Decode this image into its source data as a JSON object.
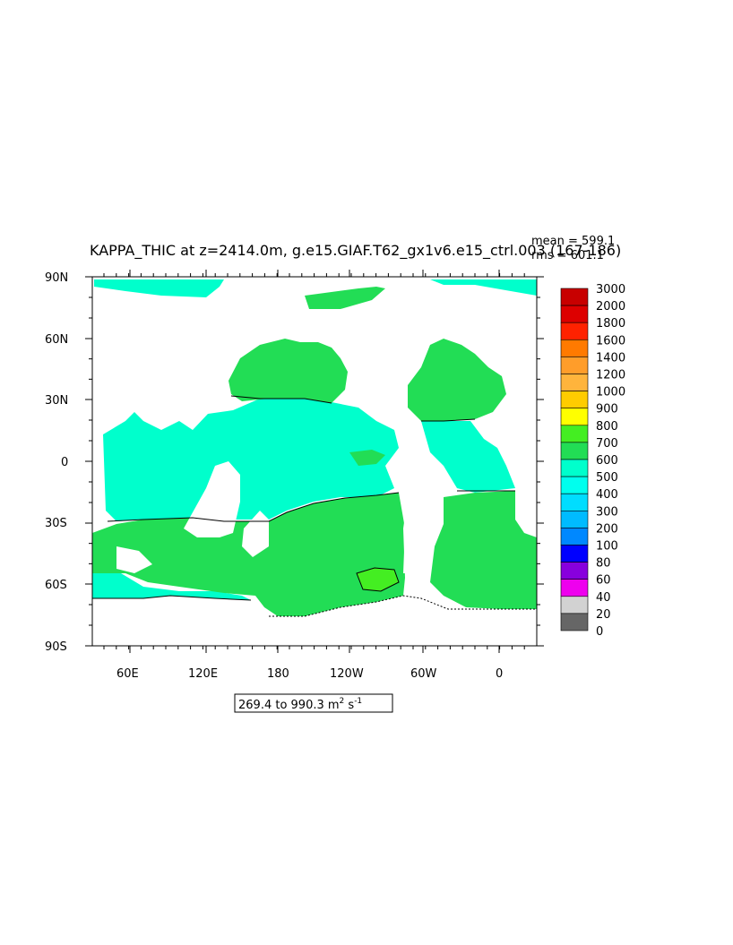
{
  "title": "KAPPA_THIC at z=2414.0m, g.e15.GIAF.T62_gx1v6.e15_ctrl.003 (167-186)",
  "stats": {
    "mean": "mean = 599.1",
    "rms": "rms = 601.1"
  },
  "range_label": {
    "text": "269.4 to 990.3 m",
    "unit_exp": "2",
    "unit_s": " s",
    "unit_s_exp": "-1"
  },
  "lat_labels": [
    "90N",
    "60N",
    "30N",
    "0",
    "30S",
    "60S",
    "90S"
  ],
  "lon_labels": [
    "60E",
    "120E",
    "180",
    "120W",
    "60W",
    "0"
  ],
  "colorbar": {
    "labels": [
      "3000",
      "2000",
      "1800",
      "1600",
      "1400",
      "1200",
      "1000",
      "900",
      "800",
      "700",
      "600",
      "500",
      "400",
      "300",
      "200",
      "100",
      "80",
      "60",
      "40",
      "20",
      "0"
    ],
    "colors": [
      "#c80000",
      "#dd0000",
      "#ff2200",
      "#ff7a00",
      "#ff9d2a",
      "#ffb43c",
      "#ffcc00",
      "#ffff00",
      "#44ee22",
      "#22dd55",
      "#00ffcc",
      "#00ffee",
      "#00ddff",
      "#00bbff",
      "#0088ff",
      "#0000ff",
      "#8800dd",
      "#ee00ee",
      "#d2d2d2",
      "#666666"
    ]
  },
  "map_colors": {
    "land": "#ffffff",
    "level_500_600": "#00ffcc",
    "level_600_700": "#22dd55",
    "level_700_800": "#44ee22"
  }
}
